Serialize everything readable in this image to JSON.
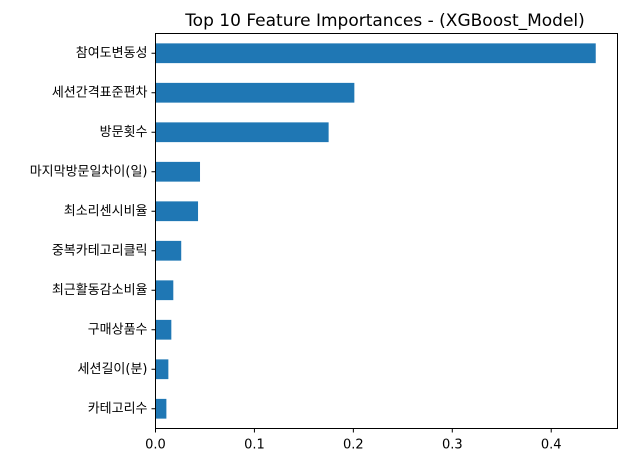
{
  "chart_data": {
    "type": "bar",
    "orientation": "horizontal",
    "title": "Top 10 Feature Importances - (XGBoost_Model)",
    "xlabel": "",
    "ylabel": "",
    "xlim": [
      0,
      0.467
    ],
    "xticks": [
      0.0,
      0.1,
      0.2,
      0.3,
      0.4
    ],
    "xtick_labels": [
      "0.0",
      "0.1",
      "0.2",
      "0.3",
      "0.4"
    ],
    "grid": false,
    "categories": [
      "참여도변동성",
      "세션간격표준편차",
      "방문횟수",
      "마지막방문일차이(일)",
      "최소리센시비율",
      "중복카테고리클릭",
      "최근활동감소비율",
      "구매상품수",
      "세션길이(분)",
      "카테고리수"
    ],
    "values": [
      0.445,
      0.201,
      0.175,
      0.045,
      0.043,
      0.026,
      0.018,
      0.016,
      0.013,
      0.011
    ],
    "color": "#1f77b4"
  }
}
